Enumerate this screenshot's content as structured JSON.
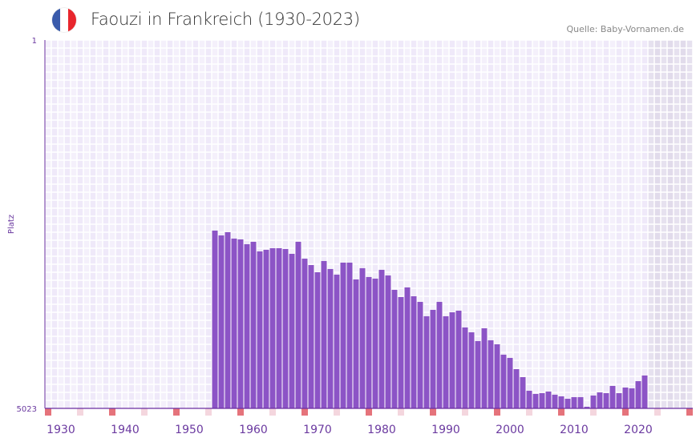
{
  "header": {
    "title": "Faouzi in Frankreich (1930-2023)",
    "source": "Quelle: Baby-Vornamen.de",
    "flag_colors": [
      "#3a5bab",
      "#ffffff",
      "#e8262d"
    ]
  },
  "colors": {
    "bar": "#8c54c6",
    "axis": "#6b2fa0",
    "tick_label": "#6b3aa0",
    "decade_mark": "#e5737b",
    "half_decade_mark": "#f4d6de"
  },
  "chart_data": {
    "type": "bar",
    "title": "Faouzi in Frankreich (1930-2023)",
    "xlabel": "",
    "ylabel": "Platz",
    "y_reversed": true,
    "ylim": [
      1,
      5023
    ],
    "y_tick_labels": [
      "1",
      "5023"
    ],
    "x_range": [
      1930,
      2030
    ],
    "x_tick_labels": [
      "1930",
      "1940",
      "1950",
      "1960",
      "1970",
      "1980",
      "1990",
      "2000",
      "2010",
      "2020"
    ],
    "x_ticks": [
      1930,
      1940,
      1950,
      1960,
      1970,
      1980,
      1990,
      2000,
      2010,
      2020
    ],
    "years": [
      1956,
      1957,
      1958,
      1959,
      1960,
      1961,
      1962,
      1963,
      1964,
      1965,
      1966,
      1967,
      1968,
      1969,
      1970,
      1971,
      1972,
      1973,
      1974,
      1975,
      1976,
      1977,
      1978,
      1979,
      1980,
      1981,
      1982,
      1983,
      1984,
      1985,
      1986,
      1987,
      1988,
      1989,
      1990,
      1991,
      1992,
      1993,
      1994,
      1995,
      1996,
      1997,
      1998,
      1999,
      2000,
      2001,
      2002,
      2003,
      2004,
      2005,
      2006,
      2007,
      2008,
      2009,
      2010,
      2011,
      2012,
      2013,
      2014,
      2015,
      2016,
      2017,
      2018,
      2019,
      2020,
      2021,
      2022,
      2023
    ],
    "ranks": [
      2599,
      2665,
      2621,
      2708,
      2719,
      2785,
      2752,
      2883,
      2861,
      2839,
      2839,
      2850,
      2916,
      2752,
      2982,
      3069,
      3167,
      3014,
      3123,
      3200,
      3036,
      3036,
      3265,
      3112,
      3232,
      3254,
      3134,
      3211,
      3407,
      3505,
      3374,
      3494,
      3571,
      3767,
      3680,
      3571,
      3767,
      3713,
      3691,
      3920,
      3986,
      4106,
      3931,
      4095,
      4149,
      4291,
      4335,
      4488,
      4597,
      4783,
      4826,
      4815,
      4794,
      4837,
      4859,
      4892,
      4870,
      4870,
      5001,
      4848,
      4805,
      4815,
      4717,
      4815,
      4739,
      4750,
      4652,
      4575
    ],
    "grid": true,
    "legend": "none"
  }
}
